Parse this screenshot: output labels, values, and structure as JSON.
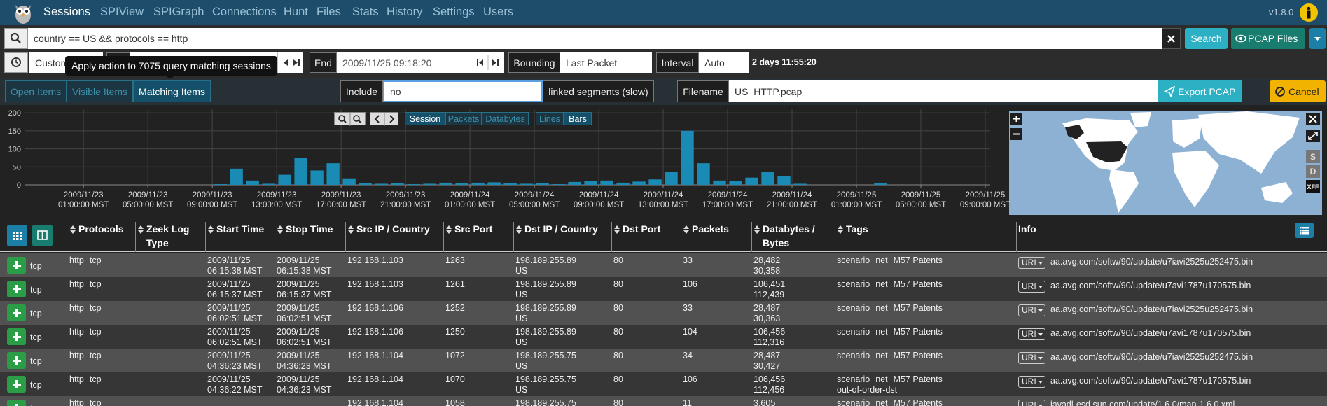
{
  "nav": {
    "items": [
      "Sessions",
      "SPIView",
      "SPIGraph",
      "Connections",
      "Hunt",
      "Files",
      "Stats",
      "History",
      "Settings",
      "Users"
    ],
    "version": "v1.8.0"
  },
  "search": {
    "query": "country == US && protocols == http",
    "search": "Search",
    "pcap": "PCAP Files"
  },
  "time": {
    "range": "Custom",
    "tooltip": "Apply action to 7075 query matching sessions",
    "end_label": "End",
    "end": "2009/11/25 09:18:20",
    "bounding_label": "Bounding",
    "bounding": "Last Packet",
    "interval_label": "Interval",
    "interval": "Auto",
    "duration": "2 days 11:55:20"
  },
  "actions": {
    "tabs": [
      "Open Items",
      "Visible Items",
      "Matching Items"
    ],
    "include_label": "Include",
    "include": "no",
    "linked": "linked segments (slow)",
    "filename_label": "Filename",
    "filename": "US_HTTP.pcap",
    "export": "Export PCAP",
    "cancel": "Cancel"
  },
  "graph_controls": {
    "metrics": [
      "Session",
      "Packets",
      "Databytes"
    ],
    "styles": [
      "Lines",
      "Bars"
    ]
  },
  "chart_data": {
    "type": "bar",
    "color": "#1a8bb5",
    "grid": true,
    "x": [
      "2009/11/22 22:00:00",
      "2009/11/22 23:00:00",
      "2009/11/23 00:00:00",
      "2009/11/23 01:00:00",
      "2009/11/23 02:00:00",
      "2009/11/23 03:00:00",
      "2009/11/23 04:00:00",
      "2009/11/23 05:00:00",
      "2009/11/23 06:00:00",
      "2009/11/23 07:00:00",
      "2009/11/23 08:00:00",
      "2009/11/23 09:00:00",
      "2009/11/23 10:00:00",
      "2009/11/23 11:00:00",
      "2009/11/23 12:00:00",
      "2009/11/23 13:00:00",
      "2009/11/23 14:00:00",
      "2009/11/23 15:00:00",
      "2009/11/23 16:00:00",
      "2009/11/23 17:00:00",
      "2009/11/23 18:00:00",
      "2009/11/23 19:00:00",
      "2009/11/23 20:00:00",
      "2009/11/23 21:00:00",
      "2009/11/23 22:00:00",
      "2009/11/23 23:00:00",
      "2009/11/24 00:00:00",
      "2009/11/24 01:00:00",
      "2009/11/24 02:00:00",
      "2009/11/24 03:00:00",
      "2009/11/24 04:00:00",
      "2009/11/24 05:00:00",
      "2009/11/24 06:00:00",
      "2009/11/24 07:00:00",
      "2009/11/24 08:00:00",
      "2009/11/24 09:00:00",
      "2009/11/24 10:00:00",
      "2009/11/24 11:00:00",
      "2009/11/24 12:00:00",
      "2009/11/24 13:00:00",
      "2009/11/24 14:00:00",
      "2009/11/24 15:00:00",
      "2009/11/24 16:00:00",
      "2009/11/24 17:00:00",
      "2009/11/24 18:00:00",
      "2009/11/24 19:00:00",
      "2009/11/24 20:00:00",
      "2009/11/24 21:00:00",
      "2009/11/24 22:00:00",
      "2009/11/24 23:00:00",
      "2009/11/25 00:00:00",
      "2009/11/25 01:00:00",
      "2009/11/25 02:00:00",
      "2009/11/25 03:00:00",
      "2009/11/25 04:00:00",
      "2009/11/25 05:00:00",
      "2009/11/25 06:00:00",
      "2009/11/25 07:00:00",
      "2009/11/25 08:00:00",
      "2009/11/25 09:00:00"
    ],
    "values": [
      0,
      0,
      0,
      0,
      0,
      0,
      0,
      0,
      0,
      0,
      0,
      2,
      45,
      12,
      3,
      28,
      75,
      40,
      60,
      18,
      4,
      3,
      5,
      2,
      3,
      6,
      5,
      6,
      7,
      4,
      3,
      5,
      2,
      8,
      10,
      12,
      6,
      9,
      15,
      35,
      150,
      60,
      12,
      10,
      20,
      35,
      25,
      3,
      0,
      0,
      0,
      0,
      4,
      0,
      0,
      0,
      0,
      0,
      0,
      0
    ],
    "xlim": [
      "2009/11/22 21:23:00",
      "2009/11/25 09:18:20"
    ],
    "ylim": [
      0,
      210
    ],
    "yticks": [
      0,
      50,
      100,
      150,
      200
    ],
    "xticks": [
      {
        "value": "2009/11/23 01:00:00",
        "label": "2009/11/23 01:00:00 MST"
      },
      {
        "value": "2009/11/23 05:00:00",
        "label": "2009/11/23 05:00:00 MST"
      },
      {
        "value": "2009/11/23 09:00:00",
        "label": "2009/11/23 09:00:00 MST"
      },
      {
        "value": "2009/11/23 13:00:00",
        "label": "2009/11/23 13:00:00 MST"
      },
      {
        "value": "2009/11/23 17:00:00",
        "label": "2009/11/23 17:00:00 MST"
      },
      {
        "value": "2009/11/23 21:00:00",
        "label": "2009/11/23 21:00:00 MST"
      },
      {
        "value": "2009/11/24 01:00:00",
        "label": "2009/11/24 01:00:00 MST"
      },
      {
        "value": "2009/11/24 05:00:00",
        "label": "2009/11/24 05:00:00 MST"
      },
      {
        "value": "2009/11/24 09:00:00",
        "label": "2009/11/24 09:00:00 MST"
      },
      {
        "value": "2009/11/24 13:00:00",
        "label": "2009/11/24 13:00:00 MST"
      },
      {
        "value": "2009/11/24 17:00:00",
        "label": "2009/11/24 17:00:00 MST"
      },
      {
        "value": "2009/11/24 21:00:00",
        "label": "2009/11/24 21:00:00 MST"
      },
      {
        "value": "2009/11/25 01:00:00",
        "label": "2009/11/25 01:00:00 MST"
      },
      {
        "value": "2009/11/25 05:00:00",
        "label": "2009/11/25 05:00:00 MST"
      },
      {
        "value": "2009/11/25 09:00:00",
        "label": "2009/11/25 09:00:00 MST"
      }
    ]
  },
  "map": {
    "buttons": [
      "S",
      "D",
      "XFF"
    ]
  },
  "table": {
    "columns": [
      "Protocols",
      "Zeek Log Type",
      "Start Time",
      "Stop Time",
      "Src IP / Country",
      "Src Port",
      "Dst IP / Country",
      "Dst Port",
      "Packets",
      "Databytes / Bytes",
      "Tags",
      "Info"
    ],
    "rows": [
      {
        "protocol": "tcp",
        "protocols": [
          "http",
          "tcp"
        ],
        "start": "2009/11/25 06:15:38 MST",
        "stop": "2009/11/25 06:15:38 MST",
        "src_ip": "192.168.1.103",
        "src_port": "1263",
        "dst_ip": "198.189.255.89",
        "dst_country": "US",
        "dst_port": "80",
        "packets": "33",
        "databytes": "28,482",
        "bytes": "30,358",
        "tags": [
          "scenario",
          "net",
          "M57 Patents"
        ],
        "info_field": "URI",
        "info_value": "aa.avg.com/softw/90/update/u7iavi2525u252475.bin"
      },
      {
        "protocol": "tcp",
        "protocols": [
          "http",
          "tcp"
        ],
        "start": "2009/11/25 06:15:37 MST",
        "stop": "2009/11/25 06:15:37 MST",
        "src_ip": "192.168.1.103",
        "src_port": "1261",
        "dst_ip": "198.189.255.89",
        "dst_country": "US",
        "dst_port": "80",
        "packets": "106",
        "databytes": "106,451",
        "bytes": "112,439",
        "tags": [
          "scenario",
          "net",
          "M57 Patents"
        ],
        "info_field": "URI",
        "info_value": "aa.avg.com/softw/90/update/u7avi1787u170575.bin"
      },
      {
        "protocol": "tcp",
        "protocols": [
          "http",
          "tcp"
        ],
        "start": "2009/11/25 06:02:51 MST",
        "stop": "2009/11/25 06:02:51 MST",
        "src_ip": "192.168.1.106",
        "src_port": "1252",
        "dst_ip": "198.189.255.89",
        "dst_country": "US",
        "dst_port": "80",
        "packets": "33",
        "databytes": "28,487",
        "bytes": "30,363",
        "tags": [
          "scenario",
          "net",
          "M57 Patents"
        ],
        "info_field": "URI",
        "info_value": "aa.avg.com/softw/90/update/u7iavi2525u252475.bin"
      },
      {
        "protocol": "tcp",
        "protocols": [
          "http",
          "tcp"
        ],
        "start": "2009/11/25 06:02:51 MST",
        "stop": "2009/11/25 06:02:51 MST",
        "src_ip": "192.168.1.106",
        "src_port": "1250",
        "dst_ip": "198.189.255.89",
        "dst_country": "US",
        "dst_port": "80",
        "packets": "104",
        "databytes": "106,456",
        "bytes": "112,316",
        "tags": [
          "scenario",
          "net",
          "M57 Patents"
        ],
        "info_field": "URI",
        "info_value": "aa.avg.com/softw/90/update/u7avi1787u170575.bin"
      },
      {
        "protocol": "tcp",
        "protocols": [
          "http",
          "tcp"
        ],
        "start": "2009/11/25 04:36:23 MST",
        "stop": "2009/11/25 04:36:23 MST",
        "src_ip": "192.168.1.104",
        "src_port": "1072",
        "dst_ip": "198.189.255.75",
        "dst_country": "US",
        "dst_port": "80",
        "packets": "34",
        "databytes": "28,487",
        "bytes": "30,427",
        "tags": [
          "scenario",
          "net",
          "M57 Patents"
        ],
        "info_field": "URI",
        "info_value": "aa.avg.com/softw/90/update/u7iavi2525u252475.bin"
      },
      {
        "protocol": "tcp",
        "protocols": [
          "http",
          "tcp"
        ],
        "start": "2009/11/25 04:36:22 MST",
        "stop": "2009/11/25 04:36:23 MST",
        "src_ip": "192.168.1.104",
        "src_port": "1070",
        "dst_ip": "198.189.255.75",
        "dst_country": "US",
        "dst_port": "80",
        "packets": "106",
        "databytes": "106,456",
        "bytes": "112,456",
        "tags": [
          "scenario",
          "net",
          "M57 Patents",
          "out-of-order-dst"
        ],
        "info_field": "URI",
        "info_value": "aa.avg.com/softw/90/update/u7avi1787u170575.bin"
      },
      {
        "protocol": "tcp",
        "protocols": [
          "http",
          "tcp"
        ],
        "src_ip": "192.168.1.104",
        "src_port": "1058",
        "dst_ip": "198.189.255.75",
        "dst_port": "80",
        "packets": "11",
        "databytes": "3,605",
        "tags": [
          "scenario",
          "net",
          "M57 Patents"
        ],
        "info_field": "URI",
        "info_value": "javadl-esd.sun.com/update/1.6.0/map-1.6.0.xml"
      }
    ]
  }
}
